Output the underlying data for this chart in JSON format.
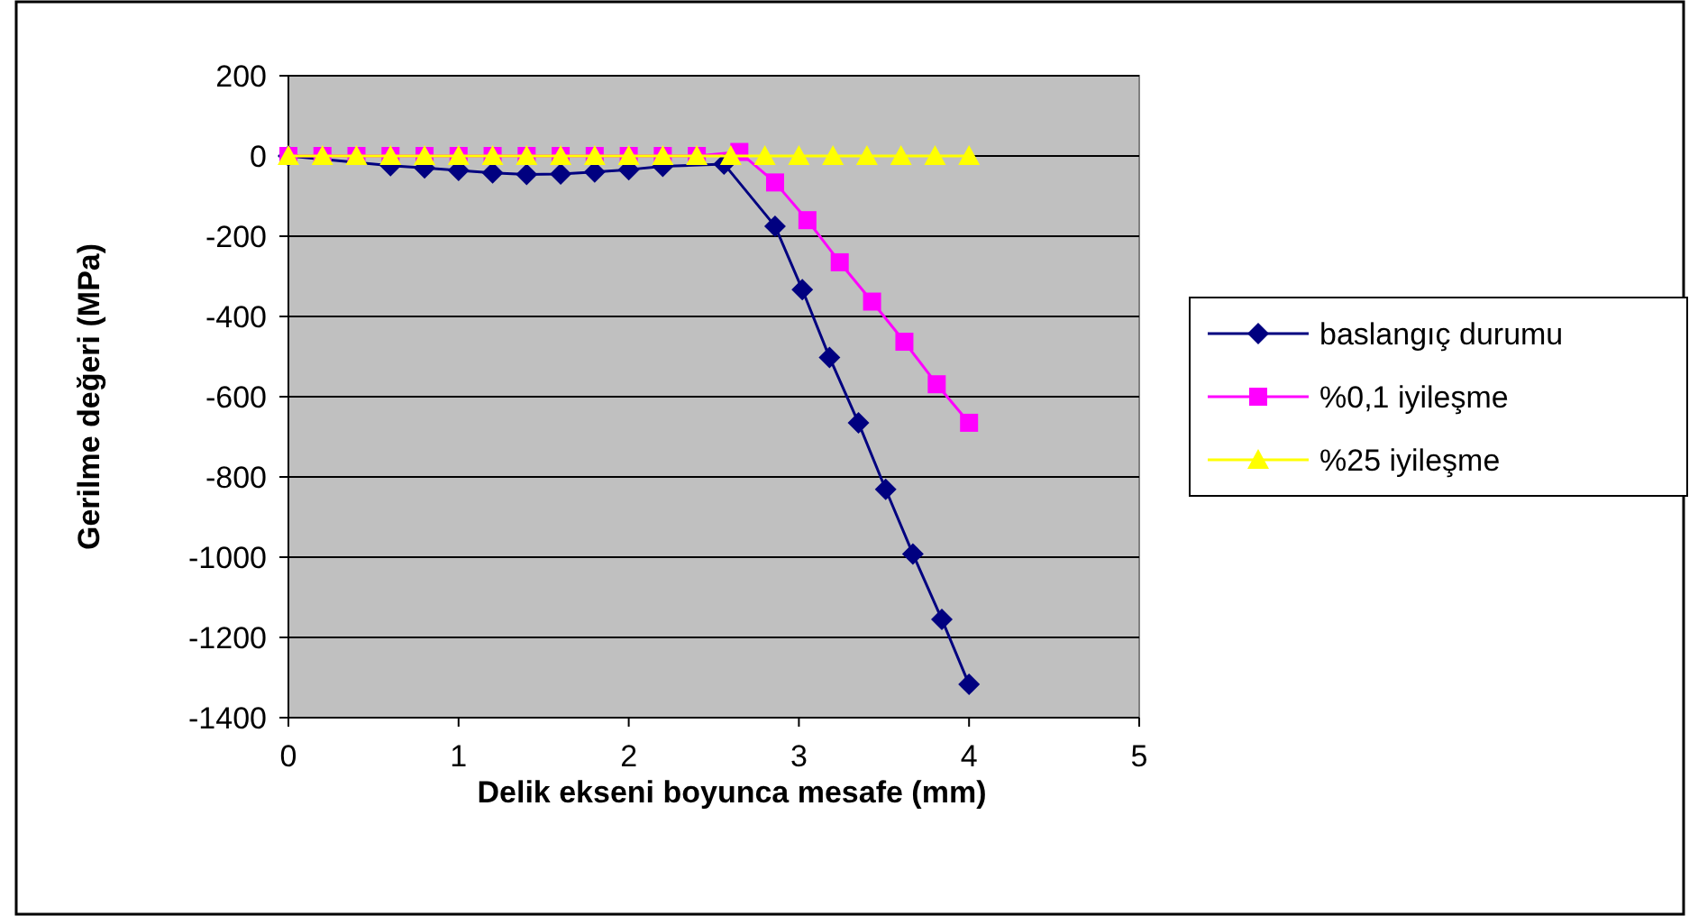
{
  "chart_data": {
    "type": "line",
    "xlabel": "Delik ekseni boyunca mesafe (mm)",
    "ylabel": "Gerilme değeri (MPa)",
    "xlim": [
      0,
      5
    ],
    "xticks": [
      0,
      1,
      2,
      3,
      4,
      5
    ],
    "ylim": [
      -1400,
      200
    ],
    "yticks": [
      -1400,
      -1200,
      -1000,
      -800,
      -600,
      -400,
      -200,
      0,
      200
    ],
    "grid": "y",
    "legend": "right",
    "series": [
      {
        "name": "baslangıç durumu",
        "color": "#000080",
        "marker": "diamond",
        "x": [
          0,
          0.2,
          0.4,
          0.6,
          0.8,
          1.0,
          1.2,
          1.4,
          1.6,
          1.8,
          2.0,
          2.2,
          2.4,
          2.56,
          2.76,
          2.86,
          3.02,
          3.18,
          3.35,
          3.51,
          3.67,
          3.84,
          4.0
        ],
        "values": [
          0,
          null,
          null,
          -24,
          -30,
          -36,
          -42,
          -46,
          -45,
          -40,
          -34,
          -26,
          null,
          -20,
          null,
          -175,
          -333,
          -502,
          -665,
          -831,
          -992,
          -1155,
          -1317
        ]
      },
      {
        "name": "%0,1 iyileşme",
        "color": "#ff00ff",
        "marker": "square",
        "x": [
          0,
          0.2,
          0.4,
          0.6,
          0.8,
          1.0,
          1.2,
          1.4,
          1.6,
          1.8,
          2.0,
          2.2,
          2.4,
          2.65,
          2.86,
          3.05,
          3.24,
          3.43,
          3.62,
          3.81,
          4.0
        ],
        "values": [
          0,
          0,
          0,
          0,
          0,
          0,
          0,
          0,
          0,
          0,
          0,
          0,
          0,
          10,
          -66,
          -160,
          -265,
          -363,
          -463,
          -569,
          -665
        ]
      },
      {
        "name": "%25 iyileşme",
        "color": "#ffff00",
        "marker": "triangle",
        "x": [
          0,
          0.2,
          0.4,
          0.6,
          0.8,
          1.0,
          1.2,
          1.4,
          1.6,
          1.8,
          2.0,
          2.2,
          2.4,
          2.6,
          2.8,
          3.0,
          3.2,
          3.4,
          3.6,
          3.8,
          4.0
        ],
        "values": [
          0,
          0,
          0,
          0,
          0,
          0,
          0,
          0,
          0,
          0,
          0,
          0,
          0,
          0,
          0,
          0,
          0,
          0,
          0,
          0,
          0
        ]
      }
    ]
  }
}
